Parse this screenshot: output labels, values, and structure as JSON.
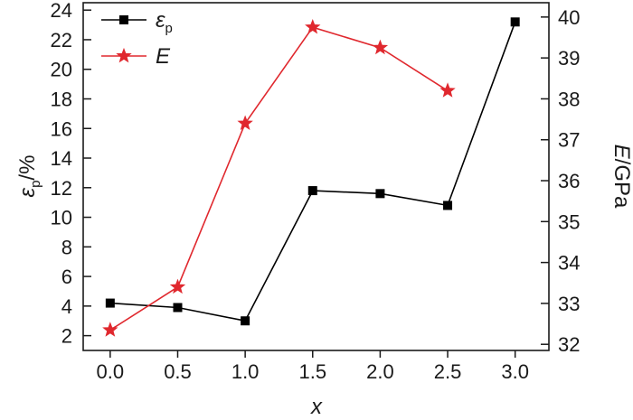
{
  "chart_data": {
    "type": "line",
    "x": [
      0.0,
      0.5,
      1.0,
      1.5,
      2.0,
      2.5,
      3.0
    ],
    "x_ticks": [
      "0.0",
      "0.5",
      "1.0",
      "1.5",
      "2.0",
      "2.5",
      "3.0"
    ],
    "xlim": [
      -0.2,
      3.25
    ],
    "xlabel": "x",
    "y_left": {
      "label_main": "ε",
      "label_sub": "p",
      "label_suffix": "/%",
      "ylim": [
        1.0,
        24.5
      ],
      "ticks": [
        2,
        4,
        6,
        8,
        10,
        12,
        14,
        16,
        18,
        20,
        22,
        24
      ]
    },
    "y_right": {
      "label_main": "E",
      "label_suffix": "/GPa",
      "ylim": [
        31.85,
        40.35
      ],
      "ticks": [
        32,
        33,
        34,
        35,
        36,
        37,
        38,
        39,
        40
      ]
    },
    "series": [
      {
        "name_main": "ε",
        "name_sub": "p",
        "axis": "left",
        "marker": "square",
        "color": "#000000",
        "x": [
          0.0,
          0.5,
          1.0,
          1.5,
          2.0,
          2.5,
          3.0
        ],
        "values": [
          4.2,
          3.9,
          3.0,
          11.8,
          11.6,
          10.8,
          23.2
        ]
      },
      {
        "name_main": "E",
        "axis": "right",
        "marker": "star",
        "color": "#e0282e",
        "x": [
          0.0,
          0.5,
          1.0,
          1.5,
          2.0,
          2.5
        ],
        "values": [
          32.35,
          33.4,
          37.4,
          39.75,
          39.25,
          38.2
        ]
      }
    ],
    "legend_position": "top-left",
    "grid": false
  }
}
